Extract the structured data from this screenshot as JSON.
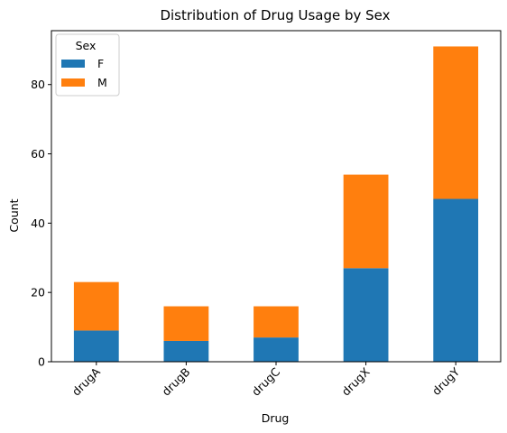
{
  "chart_data": {
    "type": "bar",
    "stacked": true,
    "title": "Distribution of Drug Usage by Sex",
    "xlabel": "Drug",
    "ylabel": "Count",
    "categories": [
      "drugA",
      "drugB",
      "drugC",
      "drugX",
      "drugY"
    ],
    "series": [
      {
        "name": "F",
        "values": [
          9,
          6,
          7,
          27,
          47
        ],
        "color": "#1f77b4"
      },
      {
        "name": "M",
        "values": [
          14,
          10,
          9,
          27,
          44
        ],
        "color": "#ff7f0e"
      }
    ],
    "ylim": [
      0,
      95.55
    ],
    "yticks": [
      "0",
      "20",
      "40",
      "60",
      "80"
    ],
    "legend": {
      "title": "Sex",
      "placement": "top-left"
    },
    "grid": false
  }
}
